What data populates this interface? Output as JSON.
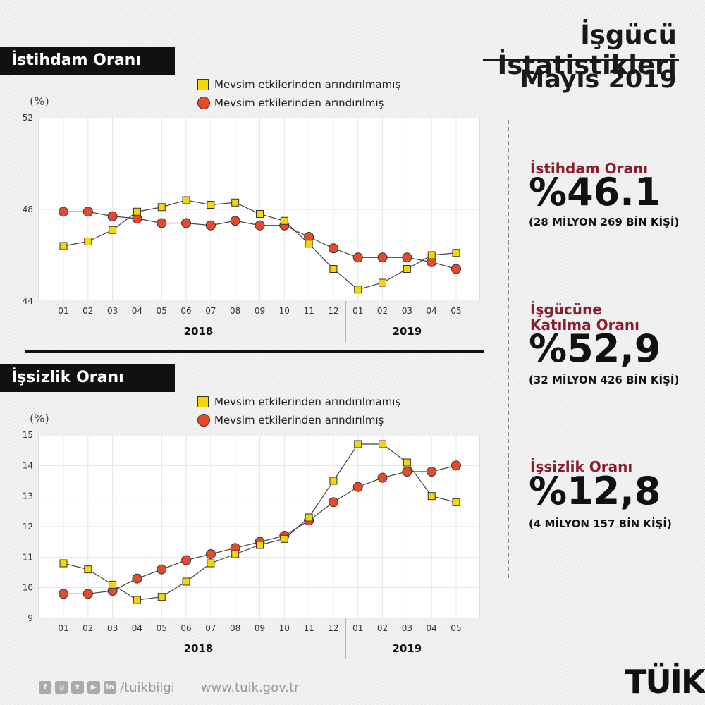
{
  "header": {
    "title": "İşgücü İstatistikleri",
    "date": "Mayıs 2019"
  },
  "sections": {
    "employment": {
      "title": "İstihdam Oranı"
    },
    "unemployment": {
      "title": "İşsizlik Oranı"
    }
  },
  "legend": {
    "unadjusted": "Mevsim etkilerinden arındırılmamış",
    "adjusted": "Mevsim etkilerinden arındırılmış"
  },
  "colors": {
    "unadjusted": "#f6d800",
    "adjusted": "#e8492b",
    "label_accent": "#8b1c2c"
  },
  "stats": [
    {
      "label_lines": [
        "İstihdam Oranı"
      ],
      "value": "%46.1",
      "sub": "(28 MİLYON 269 BİN KİŞİ)"
    },
    {
      "label_lines": [
        "İşgücüne",
        "Katılma Oranı"
      ],
      "value": "%52,9",
      "sub": "(32 MİLYON 426 BİN KİŞİ)"
    },
    {
      "label_lines": [
        "İşsizlik Oranı"
      ],
      "value": "%12,8",
      "sub": "(4 MİLYON 157 BİN KİŞİ)"
    }
  ],
  "footer": {
    "handle": "/tuikbilgi",
    "url": "www.tuik.gov.tr",
    "logo": "TÜİK",
    "icons": [
      "facebook-icon",
      "instagram-icon",
      "twitter-icon",
      "youtube-icon",
      "linkedin-icon"
    ]
  },
  "chart_data": [
    {
      "type": "line",
      "unit": "(%)",
      "categories": [
        "01",
        "02",
        "03",
        "04",
        "05",
        "06",
        "07",
        "08",
        "09",
        "10",
        "11",
        "12",
        "01",
        "02",
        "03",
        "04",
        "05"
      ],
      "years": [
        {
          "label": "2018"
        },
        {
          "label": "2019"
        }
      ],
      "ylim": [
        44,
        52
      ],
      "yticks": [
        44,
        48,
        52
      ],
      "grid": true,
      "series": [
        {
          "name": "Mevsim etkilerinden arındırılmamış",
          "marker": "square",
          "values": [
            46.4,
            46.6,
            47.1,
            47.9,
            48.1,
            48.4,
            48.2,
            48.3,
            47.8,
            47.5,
            46.5,
            45.4,
            44.5,
            44.8,
            45.4,
            46.0,
            46.1
          ]
        },
        {
          "name": "Mevsim etkilerinden arındırılmış",
          "marker": "circle",
          "values": [
            47.9,
            47.9,
            47.7,
            47.6,
            47.4,
            47.4,
            47.3,
            47.5,
            47.3,
            47.3,
            46.8,
            46.3,
            45.9,
            45.9,
            45.9,
            45.7,
            45.4
          ]
        }
      ]
    },
    {
      "type": "line",
      "unit": "(%)",
      "categories": [
        "01",
        "02",
        "03",
        "04",
        "05",
        "06",
        "07",
        "08",
        "09",
        "10",
        "11",
        "12",
        "01",
        "02",
        "03",
        "04",
        "05"
      ],
      "years": [
        {
          "label": "2018"
        },
        {
          "label": "2019"
        }
      ],
      "ylim": [
        9,
        15
      ],
      "yticks": [
        9,
        10,
        11,
        12,
        13,
        14,
        15
      ],
      "grid": true,
      "series": [
        {
          "name": "Mevsim etkilerinden arındırılmamış",
          "marker": "square",
          "values": [
            10.8,
            10.6,
            10.1,
            9.6,
            9.7,
            10.2,
            10.8,
            11.1,
            11.4,
            11.6,
            12.3,
            13.5,
            14.7,
            14.7,
            14.1,
            13.0,
            12.8
          ]
        },
        {
          "name": "Mevsim etkilerinden arındırılmış",
          "marker": "circle",
          "values": [
            9.8,
            9.8,
            9.9,
            10.3,
            10.6,
            10.9,
            11.1,
            11.3,
            11.5,
            11.7,
            12.2,
            12.8,
            13.3,
            13.6,
            13.8,
            13.8,
            14.0
          ]
        }
      ]
    }
  ]
}
